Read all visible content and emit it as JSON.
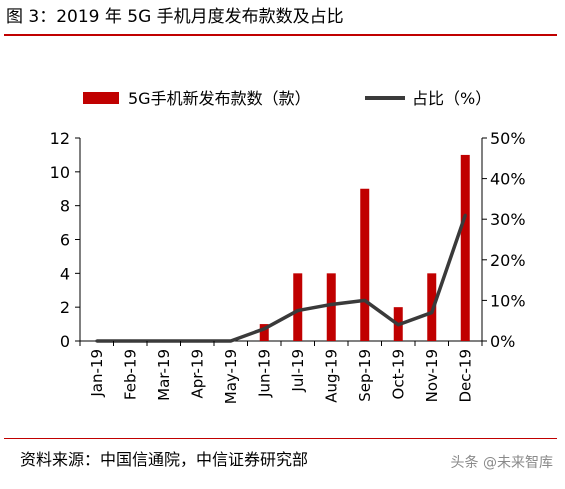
{
  "figure": {
    "title": "图 3：2019 年 5G 手机月度发布款数及占比",
    "source": "资料来源：中国信通院，中信证券研究部",
    "watermark": "头条 @未来智库"
  },
  "chart_data": {
    "type": "bar",
    "title": "图 3：2019 年 5G 手机月度发布款数及占比",
    "categories": [
      "Jan-19",
      "Feb-19",
      "Mar-19",
      "Apr-19",
      "May-19",
      "Jun-19",
      "Jul-19",
      "Aug-19",
      "Sep-19",
      "Oct-19",
      "Nov-19",
      "Dec-19"
    ],
    "series": [
      {
        "name": "5G手机新发布款数（款）",
        "type": "bar",
        "axis": "left",
        "color": "#c00000",
        "values": [
          0,
          0,
          0,
          0,
          0,
          1,
          4,
          4,
          9,
          2,
          4,
          11
        ]
      },
      {
        "name": "占比（%）",
        "type": "line",
        "axis": "right",
        "color": "#3a3a3a",
        "values": [
          0,
          0,
          0,
          0,
          0,
          3,
          7.5,
          9,
          10,
          4,
          7,
          31
        ]
      }
    ],
    "y_left": {
      "min": 0,
      "max": 12,
      "ticks": [
        "0",
        "2",
        "4",
        "6",
        "8",
        "10",
        "12"
      ]
    },
    "y_right": {
      "min": 0,
      "max": 50,
      "ticks": [
        "0%",
        "10%",
        "20%",
        "30%",
        "40%",
        "50%"
      ]
    },
    "legend_position": "top",
    "grid": false
  }
}
